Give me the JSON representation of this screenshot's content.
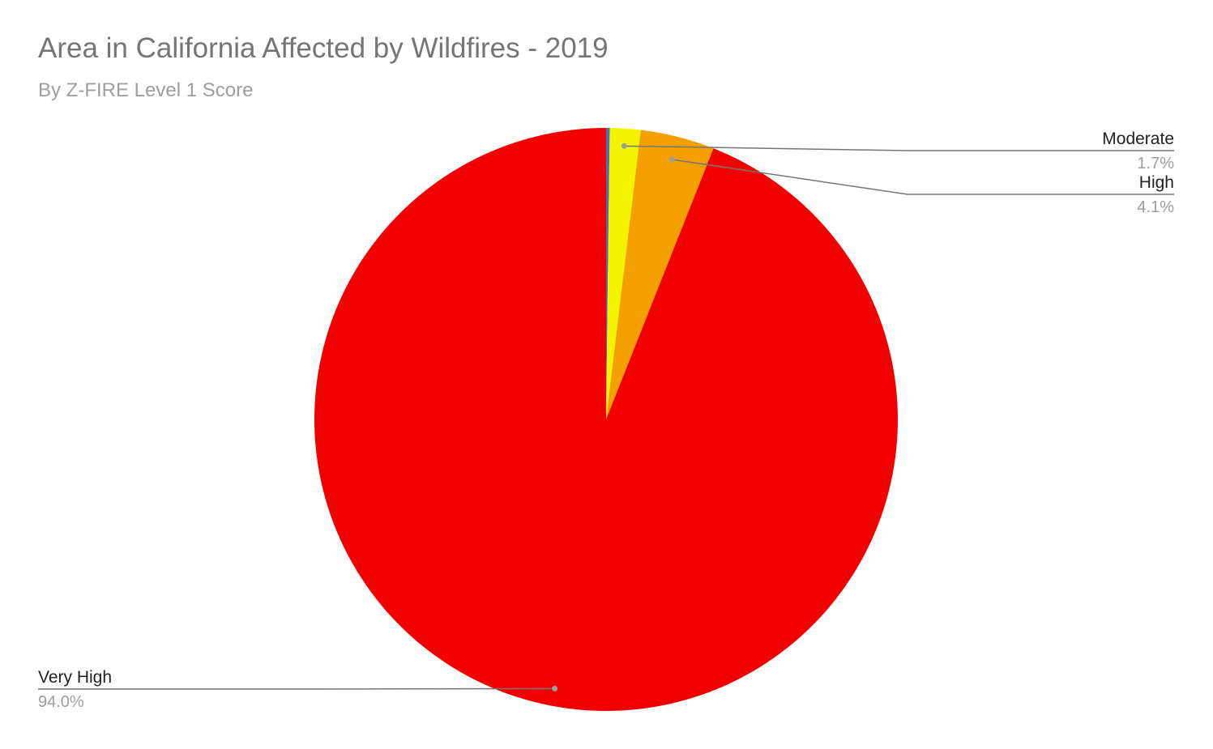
{
  "chart_data": {
    "type": "pie",
    "title": "Area in California Affected by Wildfires - 2019",
    "subtitle": "By Z-FIRE Level 1 Score",
    "start_angle_deg": 0,
    "direction": "clockwise",
    "slices": [
      {
        "name": "",
        "value": 0.2,
        "color": "#4a6fb5"
      },
      {
        "name": "Moderate",
        "value": 1.7,
        "label": "1.7%",
        "color": "#f4f400"
      },
      {
        "name": "High",
        "value": 4.1,
        "label": "4.1%",
        "color": "#f4a000"
      },
      {
        "name": "Very High",
        "value": 94.0,
        "label": "94.0%",
        "color": "#f20000"
      }
    ]
  }
}
